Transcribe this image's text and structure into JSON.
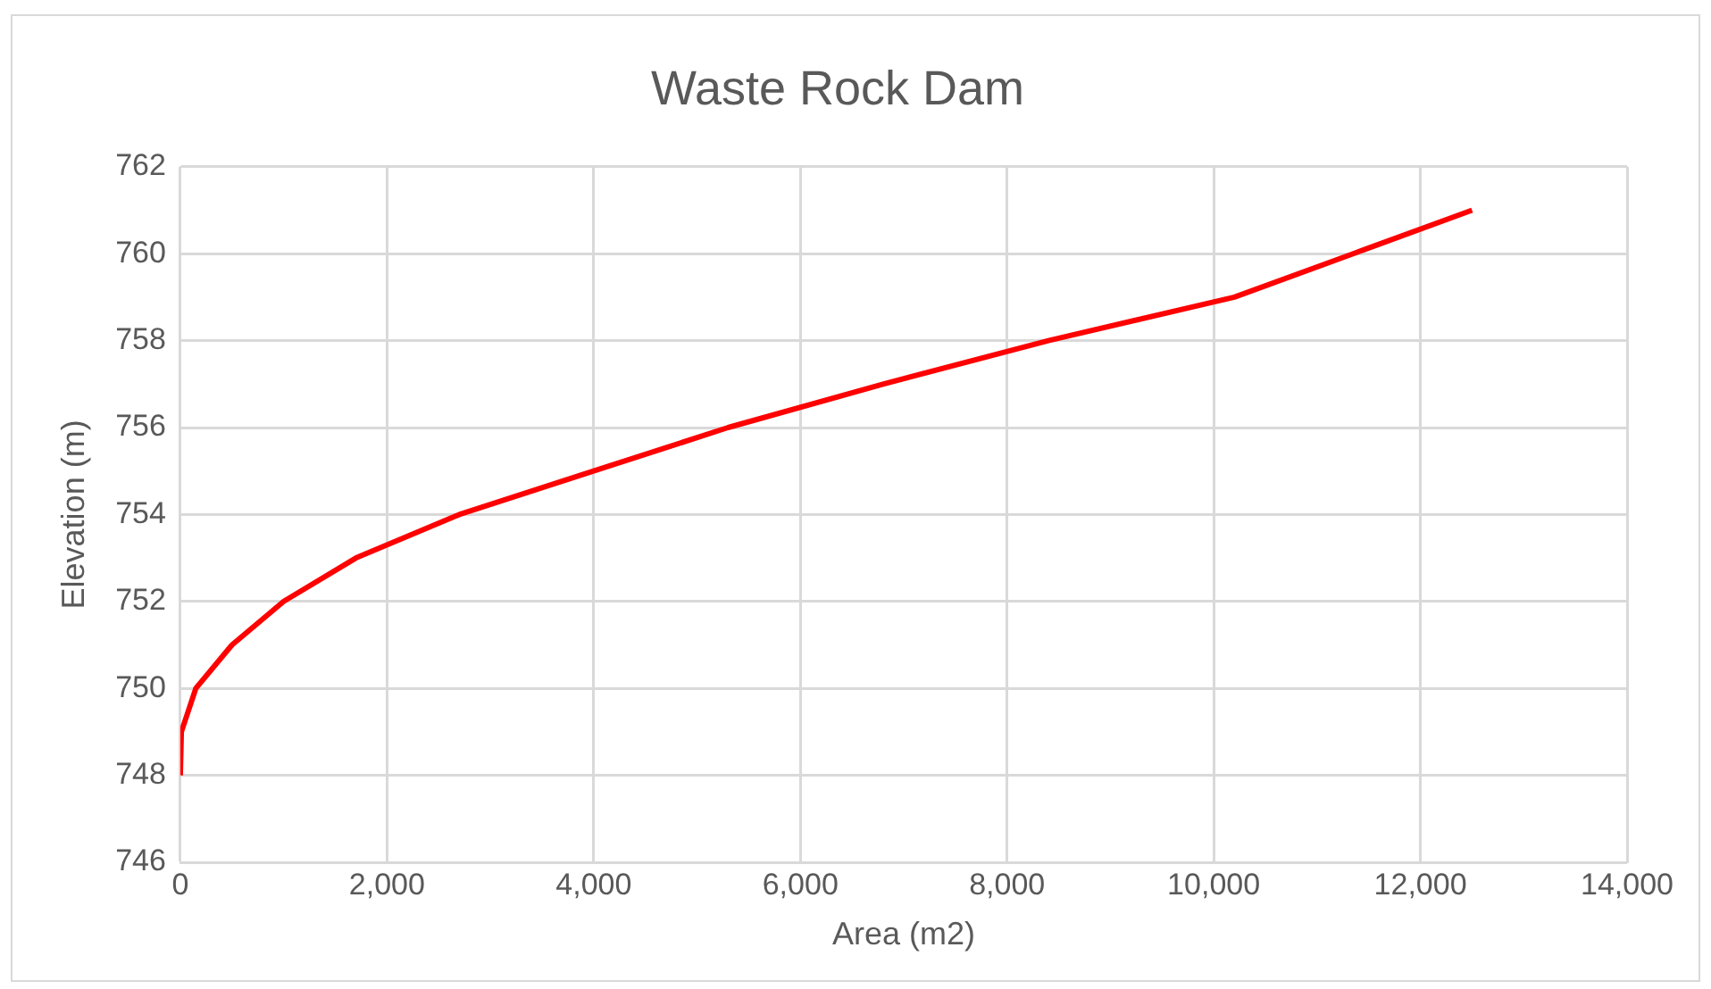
{
  "chart_data": {
    "type": "line",
    "title": "Waste Rock Dam",
    "xlabel": "Area (m2)",
    "ylabel": "Elevation (m)",
    "x": [
      0,
      10,
      150,
      500,
      1000,
      1700,
      2700,
      4000,
      5300,
      6800,
      8400,
      10200,
      11350,
      12500
    ],
    "series": [
      {
        "color": "#ff0000",
        "values": [
          748,
          749,
          750,
          751,
          752,
          753,
          754,
          755,
          756,
          757,
          758,
          759,
          760,
          761
        ]
      }
    ],
    "xlim": [
      0,
      14000
    ],
    "xticks": [
      0,
      {
        "value": 2000,
        "label": "2,000"
      },
      {
        "value": 4000,
        "label": "4,000"
      },
      {
        "value": 6000,
        "label": "6,000"
      },
      {
        "value": 8000,
        "label": "8,000"
      },
      {
        "value": 10000,
        "label": "10,000"
      },
      {
        "value": 12000,
        "label": "12,000"
      },
      {
        "value": 14000,
        "label": "14,000"
      }
    ],
    "ylim": [
      746,
      762
    ],
    "yticks": [
      746,
      748,
      750,
      752,
      754,
      756,
      758,
      760,
      762
    ],
    "grid": true,
    "legend": false,
    "marker": "none",
    "line_style": "solid"
  }
}
